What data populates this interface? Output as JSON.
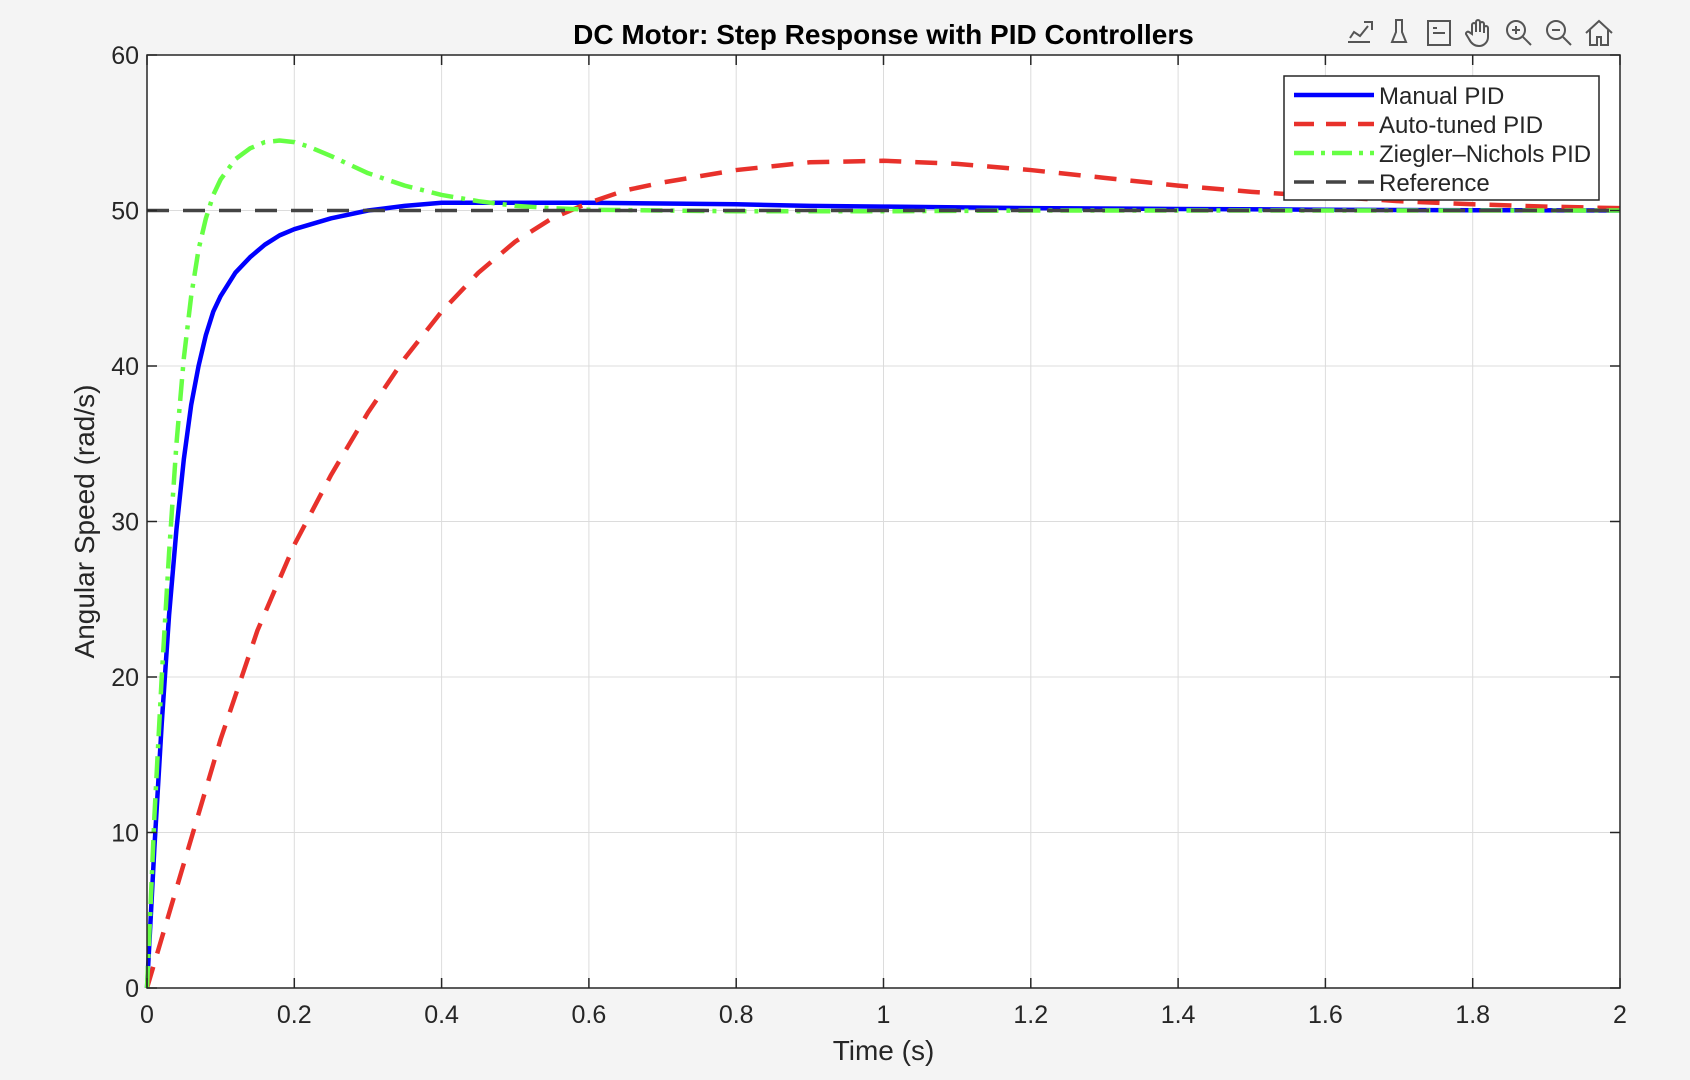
{
  "toolbar": {
    "items": [
      {
        "name": "export-icon"
      },
      {
        "name": "brush-icon"
      },
      {
        "name": "datatip-icon"
      },
      {
        "name": "pan-hand-icon"
      },
      {
        "name": "zoom-in-icon"
      },
      {
        "name": "zoom-out-icon"
      },
      {
        "name": "home-icon"
      }
    ]
  },
  "chart_data": {
    "type": "line",
    "title": "DC Motor: Step Response with PID Controllers",
    "xlabel": "Time (s)",
    "ylabel": "Angular Speed (rad/s)",
    "xlim": [
      0,
      2
    ],
    "ylim": [
      0,
      60
    ],
    "xticks": [
      0,
      0.2,
      0.4,
      0.6,
      0.8,
      1,
      1.2,
      1.4,
      1.6,
      1.8,
      2
    ],
    "xtick_labels": [
      "0",
      "0.2",
      "0.4",
      "0.6",
      "0.8",
      "1",
      "1.2",
      "1.4",
      "1.6",
      "1.8",
      "2"
    ],
    "yticks": [
      0,
      10,
      20,
      30,
      40,
      50,
      60
    ],
    "ytick_labels": [
      "0",
      "10",
      "20",
      "30",
      "40",
      "50",
      "60"
    ],
    "grid": true,
    "legend_position": "top-right",
    "series": [
      {
        "name": "Manual PID",
        "color": "#0000ff",
        "style": "solid",
        "x": [
          0,
          0.01,
          0.02,
          0.03,
          0.04,
          0.05,
          0.06,
          0.07,
          0.08,
          0.09,
          0.1,
          0.12,
          0.14,
          0.16,
          0.18,
          0.2,
          0.25,
          0.3,
          0.35,
          0.4,
          0.45,
          0.5,
          0.6,
          0.7,
          0.8,
          0.9,
          1.0,
          1.2,
          1.4,
          1.6,
          1.8,
          2.0
        ],
        "y": [
          0,
          9,
          17,
          24,
          29.5,
          34,
          37.5,
          40,
          42,
          43.5,
          44.5,
          46,
          47,
          47.8,
          48.4,
          48.8,
          49.5,
          50.0,
          50.3,
          50.5,
          50.5,
          50.5,
          50.5,
          50.45,
          50.4,
          50.3,
          50.25,
          50.15,
          50.1,
          50.05,
          50.02,
          50.0
        ]
      },
      {
        "name": "Auto-tuned PID",
        "color": "#e8312b",
        "style": "dashed",
        "x": [
          0,
          0.05,
          0.1,
          0.15,
          0.2,
          0.25,
          0.3,
          0.35,
          0.4,
          0.45,
          0.5,
          0.55,
          0.6,
          0.65,
          0.7,
          0.8,
          0.9,
          1.0,
          1.1,
          1.2,
          1.3,
          1.4,
          1.5,
          1.6,
          1.7,
          1.8,
          1.9,
          2.0
        ],
        "y": [
          0,
          8,
          16,
          23,
          28.5,
          33,
          37,
          40.5,
          43.5,
          46,
          48,
          49.5,
          50.5,
          51.3,
          51.8,
          52.6,
          53.1,
          53.2,
          53.0,
          52.6,
          52.1,
          51.6,
          51.2,
          50.9,
          50.6,
          50.4,
          50.25,
          50.15
        ]
      },
      {
        "name": "Ziegler–Nichols PID",
        "color": "#66ff44",
        "style": "dashdot",
        "x": [
          0,
          0.01,
          0.02,
          0.03,
          0.04,
          0.05,
          0.06,
          0.07,
          0.08,
          0.09,
          0.1,
          0.12,
          0.14,
          0.16,
          0.18,
          0.2,
          0.22,
          0.25,
          0.3,
          0.35,
          0.4,
          0.45,
          0.5,
          0.55,
          0.6,
          0.7,
          0.8,
          1.0,
          1.2,
          1.5,
          2.0
        ],
        "y": [
          0,
          11,
          20,
          28,
          35,
          40.5,
          44.5,
          47.5,
          49.5,
          51,
          52,
          53.3,
          54,
          54.4,
          54.5,
          54.4,
          54.1,
          53.5,
          52.4,
          51.6,
          51.0,
          50.6,
          50.3,
          50.15,
          50.05,
          50.0,
          49.95,
          49.95,
          50.0,
          50.0,
          50.0
        ]
      },
      {
        "name": "Reference",
        "color": "#444444",
        "style": "dashed",
        "x": [
          0,
          2
        ],
        "y": [
          50,
          50
        ]
      }
    ]
  }
}
